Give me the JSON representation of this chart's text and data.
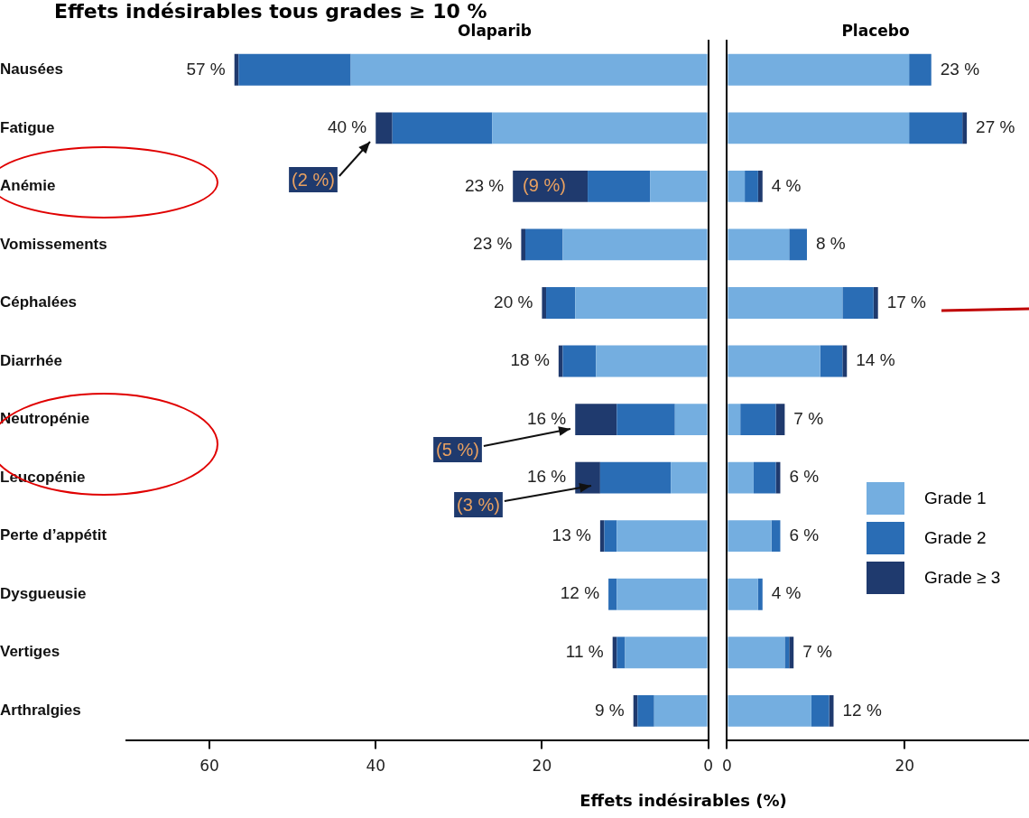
{
  "chart_data": [
    {
      "type": "bar",
      "title": "Effets indésirables tous grades ≥ 10 %",
      "subtitle": "Olaparib",
      "xlabel": "Effets indésirables (%)",
      "orientation": "horizontal",
      "stacked": true,
      "categories": [
        "Nausées",
        "Fatigue",
        "Anémie",
        "Vomissements",
        "Céphalées",
        "Diarrhée",
        "Neutropénie",
        "Leucopénie",
        "Perte d’appétit",
        "Dysgueusie",
        "Vertiges",
        "Arthralgies"
      ],
      "series": [
        {
          "color": "#74aee0",
          "values": [
            43,
            26,
            7,
            17.5,
            16,
            13.5,
            4,
            4.5,
            11,
            11,
            10,
            6.5
          ]
        },
        {
          "color": "#2a6db5",
          "values": [
            13.5,
            12,
            7.5,
            4.5,
            3.5,
            4,
            7,
            8.5,
            1.5,
            1,
            1,
            2
          ]
        },
        {
          "color": "#1f3a6e",
          "values": [
            0.5,
            2,
            9,
            0.5,
            0.5,
            0.5,
            5,
            3,
            0.5,
            0,
            0.5,
            0.5
          ]
        }
      ],
      "totals": [
        "57 %",
        "40 %",
        "23 %",
        "23 %",
        "20 %",
        "18 %",
        "16 %",
        "16 %",
        "13 %",
        "12 %",
        "11 %",
        "9 %"
      ],
      "annotations": [
        "(2 %)",
        "(9 %)",
        "(5 %)",
        "(3 %)"
      ],
      "xlim": [
        70,
        0
      ],
      "xticks": [
        60,
        40,
        20,
        0
      ]
    },
    {
      "type": "bar",
      "title": "Placebo",
      "orientation": "horizontal",
      "stacked": true,
      "tick_labels": "x",
      "legend": "bottom right",
      "categories": [
        null,
        null,
        null,
        null,
        null,
        null,
        null,
        null,
        null,
        null,
        null,
        null
      ],
      "series": [
        {
          "name": "Grade 1",
          "color": "#74aee0",
          "values": [
            20.5,
            20.5,
            2,
            7,
            13,
            10.5,
            1.5,
            3,
            5,
            3.5,
            6.5,
            9.5
          ]
        },
        {
          "name": "Grade 2",
          "color": "#2a6db5",
          "values": [
            2.5,
            6,
            1.5,
            2,
            3.5,
            2.5,
            4,
            2.5,
            1,
            0.5,
            0.5,
            2
          ]
        },
        {
          "name": "Grade ≥ 3",
          "color": "#1f3a6e",
          "values": [
            0,
            0.5,
            0.5,
            0,
            0.5,
            0.5,
            1,
            0.5,
            0,
            0,
            0.5,
            0.5
          ]
        }
      ],
      "totals": [
        "23 %",
        "27 %",
        "4 %",
        "8 %",
        "17 %",
        "14 %",
        "7 %",
        "6 %",
        "6 %",
        "4 %",
        "7 %",
        "12 %"
      ],
      "xlim": [
        0,
        34
      ],
      "xticks": [
        0,
        20
      ]
    }
  ]
}
